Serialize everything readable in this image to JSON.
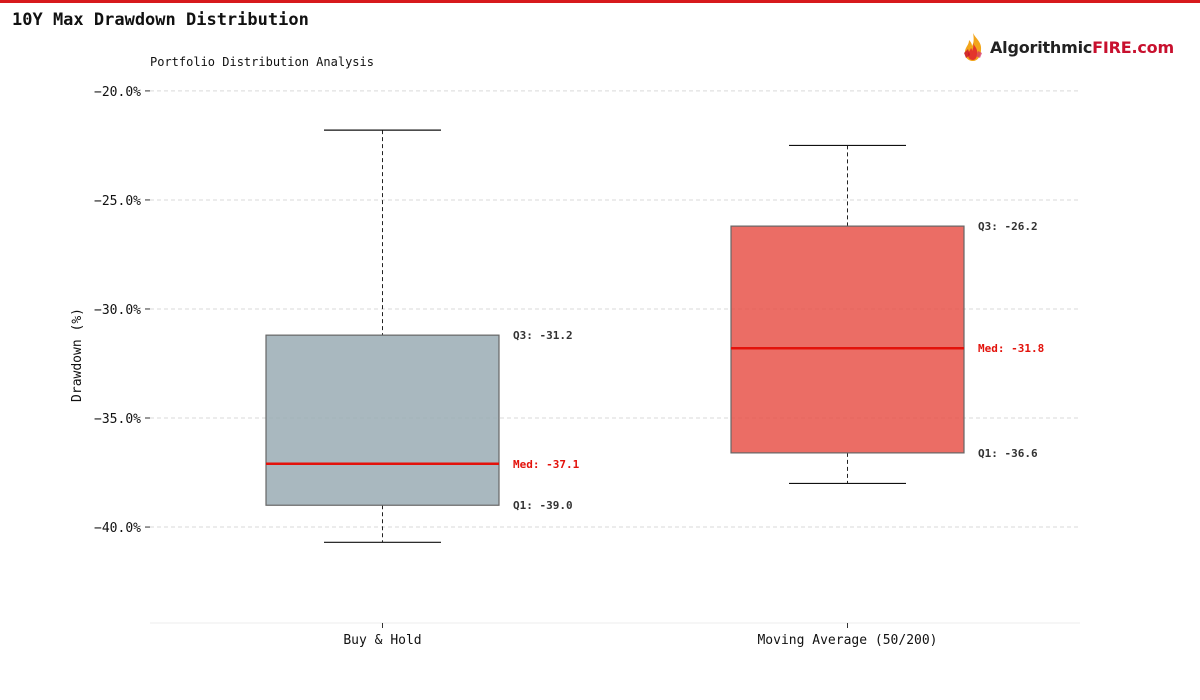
{
  "header": {
    "title": "10Y Max Drawdown Distribution",
    "subtitle": "Portfolio Distribution Analysis",
    "accent_color": "#d7191c"
  },
  "logo": {
    "name": "flame-logo-icon",
    "text_main": "Algorithmic",
    "text_accent": "FIRE.com",
    "text_main_color": "#222222",
    "text_accent_color": "#c8102e"
  },
  "chart_data": {
    "type": "box",
    "ylabel": "Drawdown (%)",
    "ylim": [
      -44.4,
      -19.5
    ],
    "yticks": [
      -20,
      -25,
      -30,
      -35,
      -40
    ],
    "grid": true,
    "categories": [
      "Buy & Hold",
      "Moving Average (50/200)"
    ],
    "boxes": [
      {
        "category": "Buy & Hold",
        "whisker_high": -21.8,
        "q3": -31.2,
        "median": -37.1,
        "q1": -39.0,
        "whisker_low": -40.7,
        "color": "#9aabb4",
        "annotations": {
          "q3": "Q3: -31.2",
          "median": "Med: -37.1",
          "q1": "Q1: -39.0"
        }
      },
      {
        "category": "Moving Average (50/200)",
        "whisker_high": -22.5,
        "q3": -26.2,
        "median": -31.8,
        "q1": -36.6,
        "whisker_low": -38.0,
        "color": "#e8534a",
        "annotations": {
          "q3": "Q3: -26.2",
          "median": "Med: -31.8",
          "q1": "Q1: -36.6"
        }
      }
    ],
    "median_color": "#e3120b"
  }
}
